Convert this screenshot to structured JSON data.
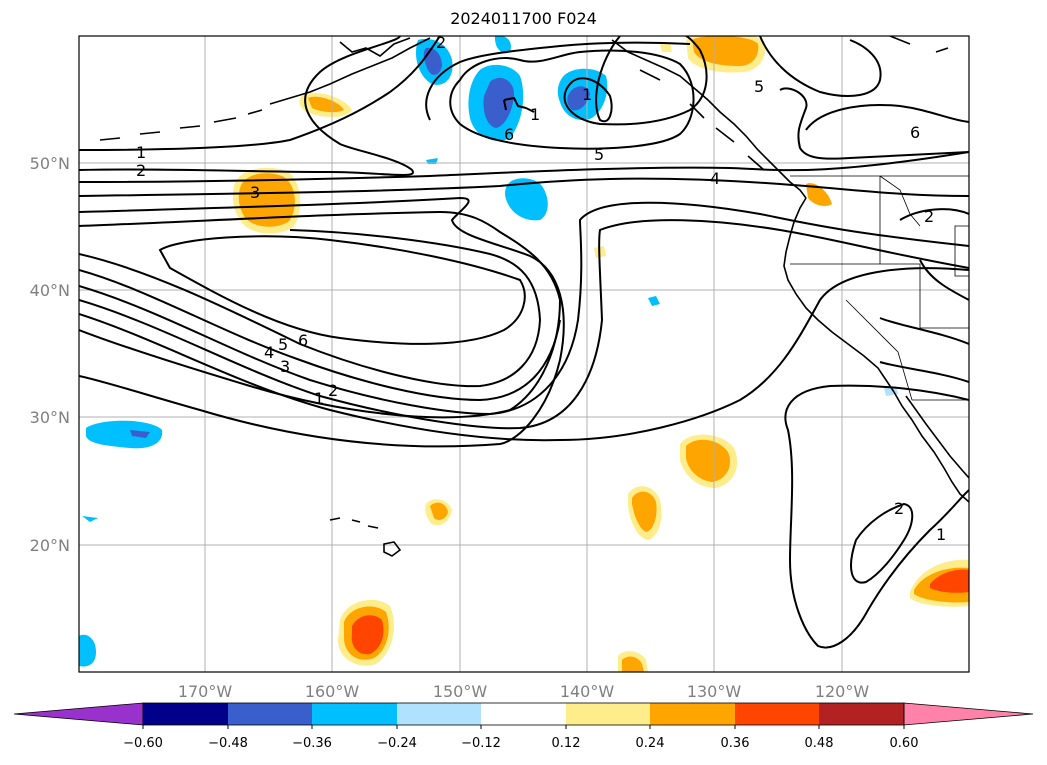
{
  "title": "2024011700 F024",
  "map": {
    "lon_labels": [
      "170°W",
      "160°W",
      "150°W",
      "140°W",
      "130°W",
      "120°W"
    ],
    "lat_labels": [
      "50°N",
      "40°N",
      "30°N",
      "20°N"
    ],
    "contour_labels": [
      "1",
      "2",
      "3",
      "4",
      "5",
      "6",
      "5",
      "4",
      "3",
      "2",
      "1",
      "1",
      "2",
      "6",
      "5",
      "1",
      "4",
      "6",
      "2",
      "6",
      "2",
      "1",
      "5"
    ]
  },
  "colorbar": {
    "ticks": [
      "−0.60",
      "−0.48",
      "−0.36",
      "−0.24",
      "−0.12",
      "0.12",
      "0.24",
      "0.36",
      "0.48",
      "0.60"
    ],
    "colors": [
      "#9932cc",
      "#00008b",
      "#3a5fcd",
      "#00bfff",
      "#b0e2ff",
      "#ffffff",
      "#ffec8b",
      "#ffa500",
      "#ff4500",
      "#b22222",
      "#ff82ab"
    ]
  },
  "colors": {
    "neg_strong": "#3a5fcd",
    "neg_mid": "#00bfff",
    "neg_weak": "#b0e2ff",
    "pos_weak": "#ffec8b",
    "pos_mid": "#ffa500",
    "pos_strong": "#ff4500"
  }
}
